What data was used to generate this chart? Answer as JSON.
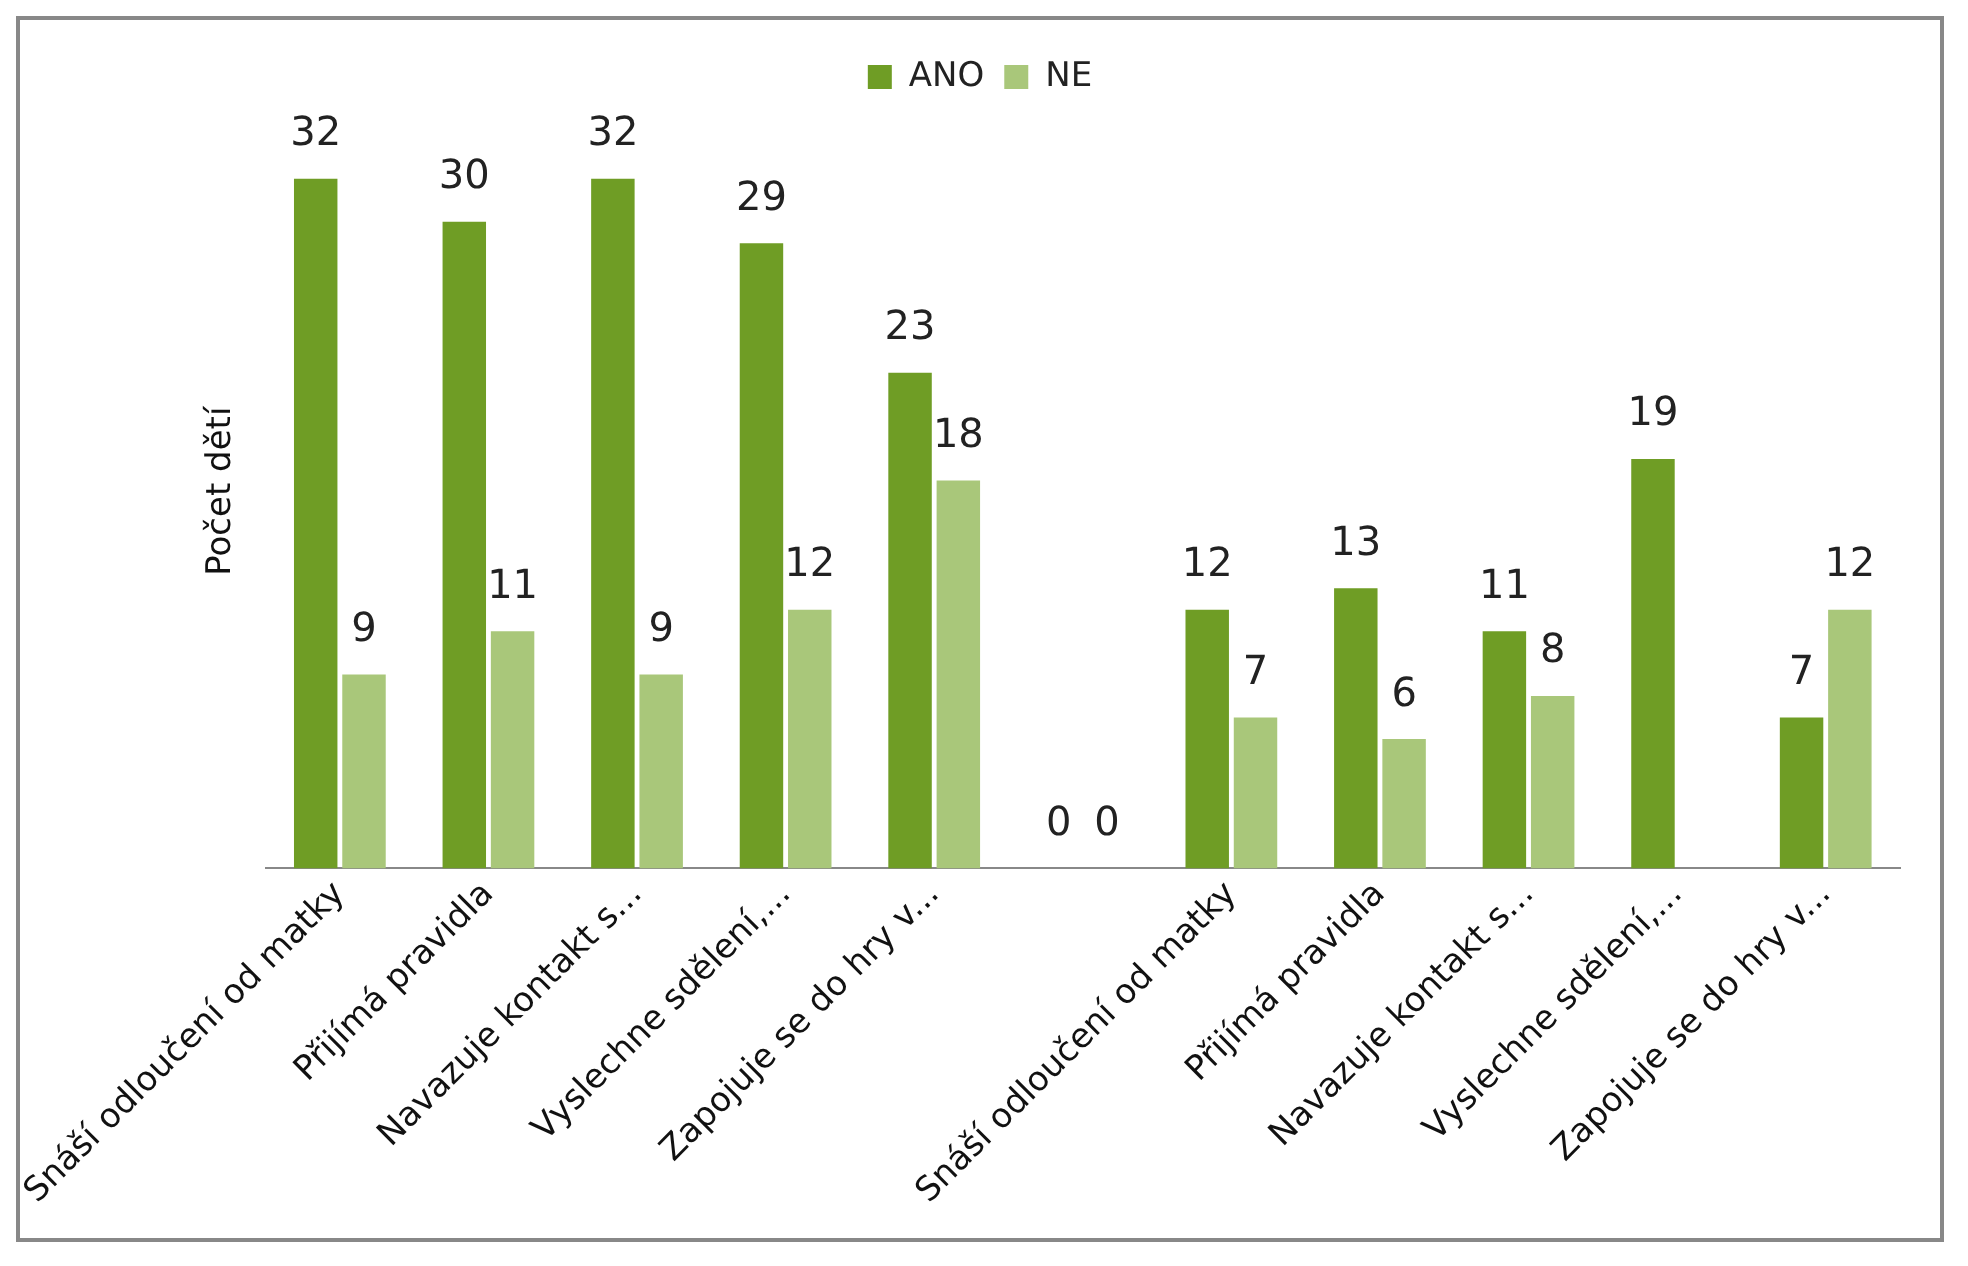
{
  "chart_data": {
    "type": "bar",
    "ylabel": "Počet dětí",
    "categories": [
      "Snáší odloučení od matky",
      "Přijímá pravidla",
      "Navazuje kontakt s...",
      "Vyslechne sdělení,...",
      "Zapojuje se do hry v...",
      null,
      "Snáší odloučení od matky",
      "Přijímá pravidla",
      "Navazuje kontakt s...",
      "Vyslechne sdělení,...",
      "Zapojuje se do hry v..."
    ],
    "series": [
      {
        "name": "ANO",
        "color": "#6f9d25",
        "values": [
          32,
          30,
          32,
          29,
          23,
          0,
          12,
          13,
          11,
          19,
          7
        ]
      },
      {
        "name": "NE",
        "color": "#a9c77a",
        "values": [
          9,
          11,
          9,
          12,
          18,
          0,
          7,
          6,
          8,
          null,
          12
        ]
      }
    ],
    "data_labels": true,
    "legend": "top",
    "grid": false,
    "tick_labels": "x"
  }
}
